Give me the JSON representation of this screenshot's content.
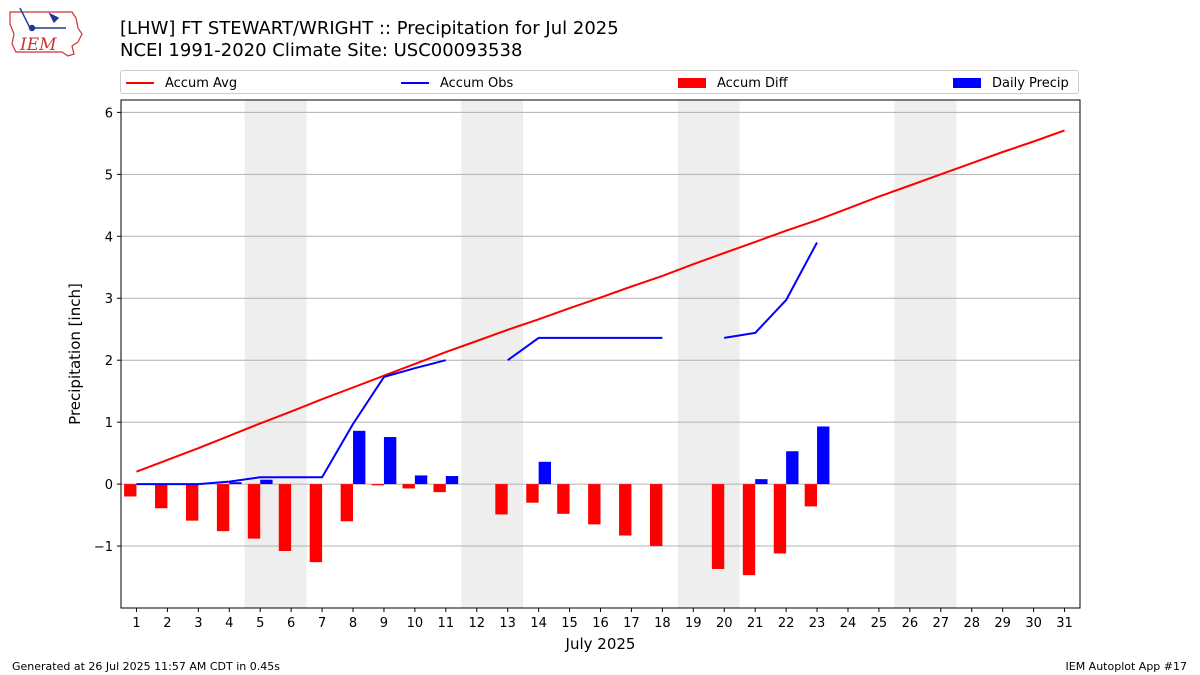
{
  "header": {
    "title_line1": "[LHW] FT STEWART/WRIGHT :: Precipitation for Jul 2025",
    "title_line2": "NCEI 1991-2020 Climate Site: USC00093538",
    "logo_text": "IEM"
  },
  "footer": {
    "left": "Generated at 26 Jul 2025 11:57 AM CDT in 0.45s",
    "right": "IEM Autoplot App #17"
  },
  "colors": {
    "accum_avg": "#ff0000",
    "accum_obs": "#0000ff",
    "accum_diff": "#ff0000",
    "daily_precip": "#0000ff",
    "weekend_shade": "#eeeeee",
    "grid": "#b0b0b0"
  },
  "legend": [
    {
      "label": "Accum Avg",
      "kind": "line",
      "color": "#ff0000"
    },
    {
      "label": "Accum Obs",
      "kind": "line",
      "color": "#0000ff"
    },
    {
      "label": "Accum Diff",
      "kind": "patch",
      "color": "#ff0000"
    },
    {
      "label": "Daily Precip",
      "kind": "patch",
      "color": "#0000ff"
    }
  ],
  "chart_data": {
    "type": "bar",
    "xlabel": "July 2025",
    "ylabel": "Precipitation [inch]",
    "ylim": [
      -2.0,
      6.2
    ],
    "yticks": [
      -1,
      0,
      1,
      2,
      3,
      4,
      5,
      6
    ],
    "ytick_labels": [
      "−1",
      "0",
      "1",
      "2",
      "3",
      "4",
      "5",
      "6"
    ],
    "xlim": [
      0.5,
      31.5
    ],
    "x": [
      1,
      2,
      3,
      4,
      5,
      6,
      7,
      8,
      9,
      10,
      11,
      12,
      13,
      14,
      15,
      16,
      17,
      18,
      19,
      20,
      21,
      22,
      23,
      24,
      25,
      26,
      27,
      28,
      29,
      30,
      31
    ],
    "xtick_labels": [
      "1",
      "2",
      "3",
      "4",
      "5",
      "6",
      "7",
      "8",
      "9",
      "10",
      "11",
      "12",
      "13",
      "14",
      "15",
      "16",
      "17",
      "18",
      "19",
      "20",
      "21",
      "22",
      "23",
      "24",
      "25",
      "26",
      "27",
      "28",
      "29",
      "30",
      "31"
    ],
    "grid": "y",
    "legend_position": "top",
    "weekends": [
      [
        5,
        6
      ],
      [
        12,
        13
      ],
      [
        19,
        20
      ],
      [
        26,
        27
      ]
    ],
    "series": [
      {
        "name": "Accum Avg",
        "type": "line",
        "values": [
          0.2,
          0.39,
          0.58,
          0.78,
          0.98,
          1.17,
          1.37,
          1.56,
          1.75,
          1.94,
          2.13,
          2.31,
          2.49,
          2.66,
          2.84,
          3.01,
          3.19,
          3.36,
          3.55,
          3.73,
          3.91,
          4.09,
          4.26,
          4.45,
          4.64,
          4.82,
          5.0,
          5.18,
          5.36,
          5.53,
          5.71
        ]
      },
      {
        "name": "Accum Obs",
        "type": "line",
        "values": [
          0.0,
          0.0,
          0.0,
          0.04,
          0.11,
          0.11,
          0.11,
          0.97,
          1.73,
          1.87,
          2.0,
          null,
          2.0,
          2.36,
          2.36,
          2.36,
          2.36,
          2.36,
          null,
          2.36,
          2.44,
          2.97,
          3.9,
          null,
          null,
          null,
          null,
          null,
          null,
          null,
          null
        ]
      },
      {
        "name": "Accum Diff",
        "type": "bar",
        "values": [
          -0.2,
          -0.39,
          -0.59,
          -0.76,
          -0.88,
          -1.08,
          -1.26,
          -0.6,
          -0.02,
          -0.07,
          -0.13,
          null,
          -0.49,
          -0.3,
          -0.48,
          -0.65,
          -0.83,
          -1.0,
          null,
          -1.37,
          -1.47,
          -1.12,
          -0.36,
          null,
          null,
          null,
          null,
          null,
          null,
          null,
          null
        ]
      },
      {
        "name": "Daily Precip",
        "type": "bar",
        "values": [
          0.0,
          0.0,
          0.0,
          0.03,
          0.07,
          0.0,
          0.0,
          0.86,
          0.76,
          0.14,
          0.13,
          null,
          0.0,
          0.36,
          0.0,
          0.0,
          0.0,
          0.0,
          null,
          0.0,
          0.08,
          0.53,
          0.93,
          null,
          null,
          null,
          null,
          null,
          null,
          null,
          null
        ]
      }
    ]
  }
}
